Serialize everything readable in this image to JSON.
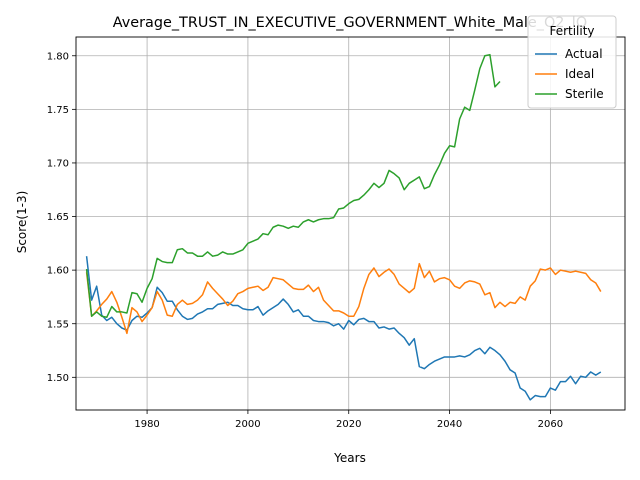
{
  "chart_data": {
    "type": "line",
    "title": "Average_TRUST_IN_EXECUTIVE_GOVERNMENT_White_Male_Q2_IQ",
    "xlabel": "Years",
    "ylabel": "Score(1-3)",
    "xlim": [
      1965.9,
      2074.8
    ],
    "ylim": [
      1.4695,
      1.8175
    ],
    "x_ticks": [
      1980,
      2000,
      2020,
      2040,
      2060
    ],
    "x_tick_labels": [
      "1980",
      "2000",
      "2020",
      "2040",
      "2060"
    ],
    "y_ticks": [
      1.5,
      1.55,
      1.6,
      1.65,
      1.7,
      1.75,
      1.8
    ],
    "y_tick_labels": [
      "1.50",
      "1.55",
      "1.60",
      "1.65",
      "1.70",
      "1.75",
      "1.80"
    ],
    "grid": true,
    "legend": {
      "title": "Fertility",
      "position": "top-right"
    },
    "series": [
      {
        "name": "Actual",
        "color": "#1f77b4",
        "x": [
          1968,
          1969,
          1970,
          1971,
          1972,
          1973,
          1974,
          1975,
          1976,
          1977,
          1978,
          1979,
          1980,
          1981,
          1982,
          1983,
          1984,
          1985,
          1986,
          1987,
          1988,
          1989,
          1990,
          1991,
          1992,
          1993,
          1994,
          1995,
          1996,
          1997,
          1998,
          1999,
          2000,
          2001,
          2002,
          2003,
          2004,
          2005,
          2006,
          2007,
          2008,
          2009,
          2010,
          2011,
          2012,
          2013,
          2014,
          2015,
          2016,
          2017,
          2018,
          2019,
          2020,
          2021,
          2022,
          2023,
          2024,
          2025,
          2026,
          2027,
          2028,
          2029,
          2030,
          2031,
          2032,
          2033,
          2034,
          2035,
          2036,
          2037,
          2038,
          2039,
          2040,
          2041,
          2042,
          2043,
          2044,
          2045,
          2046,
          2047,
          2048,
          2049,
          2050,
          2051,
          2052,
          2053,
          2054,
          2055,
          2056,
          2057,
          2058,
          2059,
          2060,
          2061,
          2062,
          2063,
          2064,
          2065,
          2066,
          2067,
          2068,
          2069,
          2070
        ],
        "y": [
          1.613,
          1.572,
          1.585,
          1.558,
          1.553,
          1.556,
          1.55,
          1.546,
          1.544,
          1.553,
          1.557,
          1.556,
          1.56,
          1.565,
          1.584,
          1.579,
          1.571,
          1.571,
          1.563,
          1.557,
          1.554,
          1.555,
          1.559,
          1.561,
          1.564,
          1.564,
          1.568,
          1.569,
          1.57,
          1.567,
          1.567,
          1.564,
          1.563,
          1.563,
          1.566,
          1.558,
          1.562,
          1.565,
          1.568,
          1.573,
          1.568,
          1.561,
          1.563,
          1.557,
          1.557,
          1.553,
          1.552,
          1.552,
          1.551,
          1.548,
          1.55,
          1.545,
          1.553,
          1.549,
          1.554,
          1.555,
          1.552,
          1.552,
          1.546,
          1.547,
          1.545,
          1.546,
          1.541,
          1.537,
          1.53,
          1.536,
          1.51,
          1.508,
          1.512,
          1.515,
          1.517,
          1.519,
          1.519,
          1.519,
          1.52,
          1.519,
          1.521,
          1.525,
          1.527,
          1.522,
          1.528,
          1.525,
          1.521,
          1.515,
          1.507,
          1.504,
          1.49,
          1.487,
          1.479,
          1.483,
          1.482,
          1.482,
          1.49,
          1.488,
          1.496,
          1.496,
          1.501,
          1.494,
          1.501,
          1.5,
          1.505,
          1.502,
          1.505
        ]
      },
      {
        "name": "Ideal",
        "color": "#ff7f0e",
        "x": [
          1968,
          1969,
          1970,
          1971,
          1972,
          1973,
          1974,
          1975,
          1976,
          1977,
          1978,
          1979,
          1980,
          1981,
          1982,
          1983,
          1984,
          1985,
          1986,
          1987,
          1988,
          1989,
          1990,
          1991,
          1992,
          1993,
          1994,
          1995,
          1996,
          1997,
          1998,
          1999,
          2000,
          2001,
          2002,
          2003,
          2004,
          2005,
          2006,
          2007,
          2008,
          2009,
          2010,
          2011,
          2012,
          2013,
          2014,
          2015,
          2016,
          2017,
          2018,
          2019,
          2020,
          2021,
          2022,
          2023,
          2024,
          2025,
          2026,
          2027,
          2028,
          2029,
          2030,
          2031,
          2032,
          2033,
          2034,
          2035,
          2036,
          2037,
          2038,
          2039,
          2040,
          2041,
          2042,
          2043,
          2044,
          2045,
          2046,
          2047,
          2048,
          2049,
          2050,
          2051,
          2052,
          2053,
          2054,
          2055,
          2056,
          2057,
          2058,
          2059,
          2060,
          2061,
          2062,
          2063,
          2064,
          2065,
          2066,
          2067,
          2068,
          2069,
          2070
        ],
        "y": [
          1.598,
          1.557,
          1.562,
          1.568,
          1.573,
          1.58,
          1.57,
          1.556,
          1.541,
          1.565,
          1.561,
          1.552,
          1.558,
          1.565,
          1.58,
          1.572,
          1.558,
          1.557,
          1.568,
          1.572,
          1.568,
          1.569,
          1.572,
          1.577,
          1.589,
          1.583,
          1.578,
          1.573,
          1.567,
          1.571,
          1.578,
          1.58,
          1.583,
          1.584,
          1.585,
          1.581,
          1.584,
          1.593,
          1.592,
          1.591,
          1.587,
          1.583,
          1.582,
          1.582,
          1.586,
          1.58,
          1.584,
          1.572,
          1.567,
          1.562,
          1.562,
          1.56,
          1.557,
          1.557,
          1.566,
          1.583,
          1.596,
          1.602,
          1.594,
          1.598,
          1.601,
          1.596,
          1.587,
          1.583,
          1.579,
          1.583,
          1.606,
          1.593,
          1.599,
          1.589,
          1.592,
          1.593,
          1.591,
          1.585,
          1.583,
          1.588,
          1.59,
          1.589,
          1.587,
          1.577,
          1.579,
          1.565,
          1.57,
          1.566,
          1.57,
          1.569,
          1.575,
          1.572,
          1.585,
          1.59,
          1.601,
          1.6,
          1.602,
          1.596,
          1.6,
          1.599,
          1.598,
          1.599,
          1.598,
          1.597,
          1.591,
          1.588,
          1.58
        ]
      },
      {
        "name": "Sterile",
        "color": "#2ca02c",
        "x": [
          1968,
          1969,
          1970,
          1971,
          1972,
          1973,
          1974,
          1975,
          1976,
          1977,
          1978,
          1979,
          1980,
          1981,
          1982,
          1983,
          1984,
          1985,
          1986,
          1987,
          1988,
          1989,
          1990,
          1991,
          1992,
          1993,
          1994,
          1995,
          1996,
          1997,
          1998,
          1999,
          2000,
          2001,
          2002,
          2003,
          2004,
          2005,
          2006,
          2007,
          2008,
          2009,
          2010,
          2011,
          2012,
          2013,
          2014,
          2015,
          2016,
          2017,
          2018,
          2019,
          2020,
          2021,
          2022,
          2023,
          2024,
          2025,
          2026,
          2027,
          2028,
          2029,
          2030,
          2031,
          2032,
          2033,
          2034,
          2035,
          2036,
          2037,
          2038,
          2039,
          2040,
          2041,
          2042,
          2043,
          2044,
          2045,
          2046,
          2047,
          2048,
          2049,
          2050
        ],
        "y": [
          1.601,
          1.557,
          1.561,
          1.557,
          1.556,
          1.566,
          1.561,
          1.561,
          1.56,
          1.579,
          1.578,
          1.57,
          1.583,
          1.592,
          1.611,
          1.608,
          1.607,
          1.607,
          1.619,
          1.62,
          1.616,
          1.616,
          1.613,
          1.613,
          1.617,
          1.613,
          1.614,
          1.617,
          1.615,
          1.615,
          1.617,
          1.619,
          1.625,
          1.627,
          1.629,
          1.634,
          1.633,
          1.64,
          1.642,
          1.641,
          1.639,
          1.641,
          1.64,
          1.645,
          1.647,
          1.645,
          1.647,
          1.648,
          1.648,
          1.649,
          1.657,
          1.658,
          1.662,
          1.665,
          1.666,
          1.67,
          1.675,
          1.681,
          1.677,
          1.681,
          1.693,
          1.69,
          1.686,
          1.675,
          1.681,
          1.684,
          1.687,
          1.676,
          1.678,
          1.689,
          1.698,
          1.709,
          1.716,
          1.715,
          1.741,
          1.752,
          1.749,
          1.768,
          1.788,
          1.8,
          1.801,
          1.771,
          1.776
        ]
      }
    ]
  }
}
